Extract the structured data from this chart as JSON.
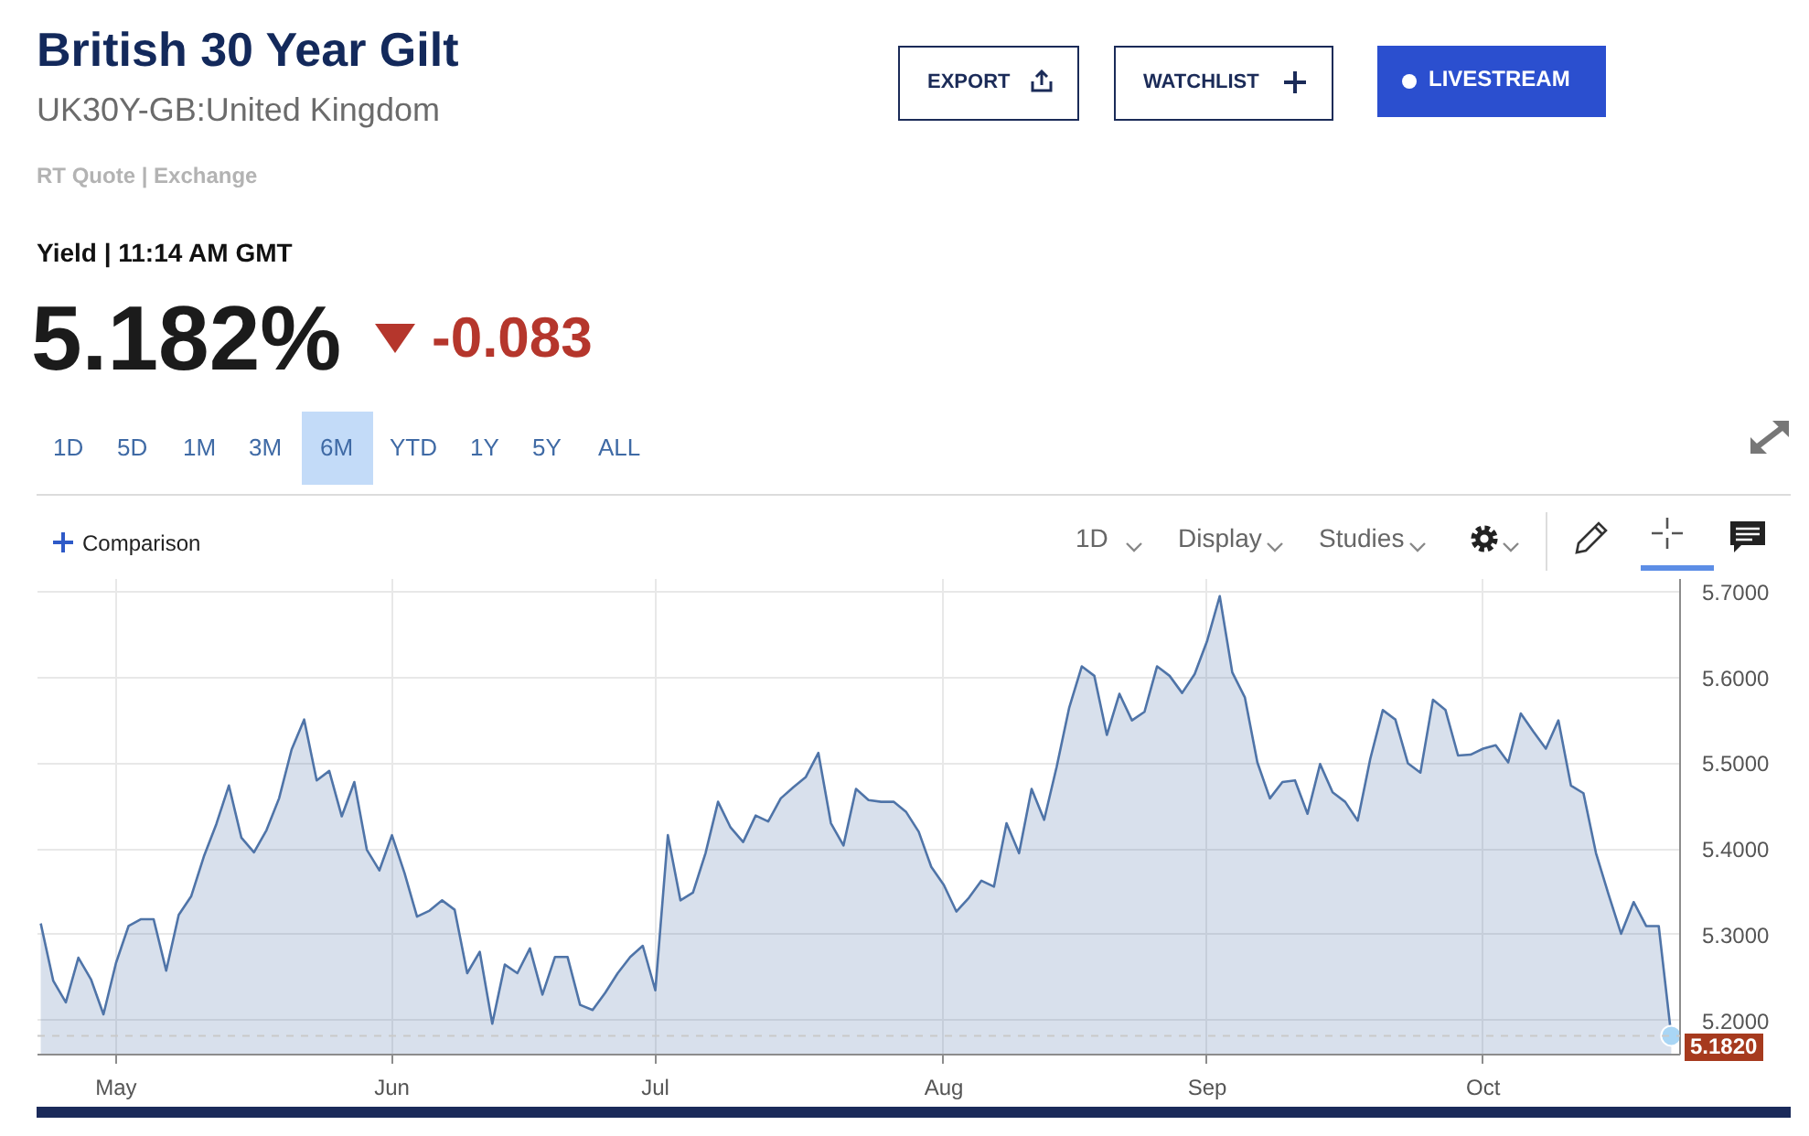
{
  "chart_data": {
    "type": "area",
    "title": "British 30 Year Gilt",
    "subtitle": "UK30Y-GB:United Kingdom",
    "annotations": [
      "RT Quote | Exchange",
      "Yield | 11:14 AM GMT",
      "5.182%",
      "-0.083",
      "EXPORT",
      "WATCHLIST",
      "LIVESTREAM",
      "1D",
      "5D",
      "1M",
      "3M",
      "6M",
      "YTD",
      "1Y",
      "5Y",
      "ALL",
      "Comparison",
      "1D",
      "Display",
      "Studies"
    ],
    "categories": [
      null,
      null,
      null,
      null,
      null,
      null,
      "May",
      null,
      null,
      null,
      null,
      null,
      null,
      null,
      null,
      null,
      null,
      null,
      null,
      null,
      null,
      null,
      null,
      null,
      null,
      null,
      null,
      null,
      "Jun",
      null,
      null,
      null,
      null,
      null,
      null,
      null,
      null,
      null,
      null,
      null,
      null,
      null,
      null,
      null,
      null,
      null,
      null,
      null,
      null,
      "Jul",
      null,
      null,
      null,
      null,
      null,
      null,
      null,
      null,
      null,
      null,
      null,
      null,
      null,
      null,
      null,
      null,
      null,
      null,
      null,
      null,
      null,
      null,
      "Aug",
      null,
      null,
      null,
      null,
      null,
      null,
      null,
      null,
      null,
      null,
      null,
      null,
      null,
      null,
      null,
      null,
      null,
      null,
      null,
      null,
      "Sep",
      null,
      null,
      null,
      null,
      null,
      null,
      null,
      null,
      null,
      null,
      null,
      null,
      null,
      null,
      null,
      null,
      null,
      null,
      null,
      null,
      null,
      "Oct",
      null,
      null,
      null,
      null,
      null,
      null,
      null,
      null,
      null,
      null,
      null,
      null,
      null,
      null,
      null
    ],
    "values": [
      5.313,
      5.246,
      5.221,
      5.273,
      5.248,
      5.207,
      5.267,
      5.31,
      5.318,
      5.318,
      5.258,
      5.323,
      5.345,
      5.391,
      5.429,
      5.474,
      5.413,
      5.396,
      5.422,
      5.459,
      5.516,
      5.551,
      5.48,
      5.491,
      5.438,
      5.478,
      5.399,
      5.375,
      5.416,
      5.372,
      5.321,
      5.328,
      5.34,
      5.329,
      5.255,
      5.28,
      5.196,
      5.265,
      5.255,
      5.284,
      5.23,
      5.274,
      5.274,
      5.218,
      5.212,
      5.232,
      5.255,
      5.274,
      5.287,
      5.235,
      5.416,
      5.34,
      5.349,
      5.395,
      5.455,
      5.425,
      5.408,
      5.439,
      5.432,
      5.459,
      5.472,
      5.484,
      5.512,
      5.43,
      5.404,
      5.47,
      5.457,
      5.455,
      5.455,
      5.443,
      5.42,
      5.379,
      5.358,
      5.327,
      5.343,
      5.363,
      5.356,
      5.43,
      5.395,
      5.47,
      5.434,
      5.496,
      5.565,
      5.613,
      5.602,
      5.533,
      5.581,
      5.55,
      5.56,
      5.613,
      5.602,
      5.582,
      5.604,
      5.643,
      5.695,
      5.606,
      5.577,
      5.501,
      5.459,
      5.478,
      5.48,
      5.441,
      5.499,
      5.466,
      5.455,
      5.433,
      5.505,
      5.562,
      5.551,
      5.5,
      5.489,
      5.574,
      5.562,
      5.509,
      5.51,
      5.517,
      5.521,
      5.501,
      5.558,
      5.537,
      5.517,
      5.55,
      5.474,
      5.465,
      5.395,
      5.347,
      5.301,
      5.338,
      5.31,
      5.31,
      5.182
    ],
    "color": "#4f74a8",
    "ylim": [
      5.16,
      5.715
    ],
    "yticks": [
      {
        "value": 5.2,
        "label": "5.2000"
      },
      {
        "value": 5.3,
        "label": "5.3000"
      },
      {
        "value": 5.4,
        "label": "5.4000"
      },
      {
        "value": 5.5,
        "label": "5.5000"
      },
      {
        "value": 5.6,
        "label": "5.6000"
      },
      {
        "value": 5.7,
        "label": "5.7000"
      }
    ],
    "ref_lines": [
      {
        "axis": "y",
        "value": 5.182,
        "label": "5.1820",
        "line_style": "dashed"
      }
    ],
    "grid": true
  }
}
